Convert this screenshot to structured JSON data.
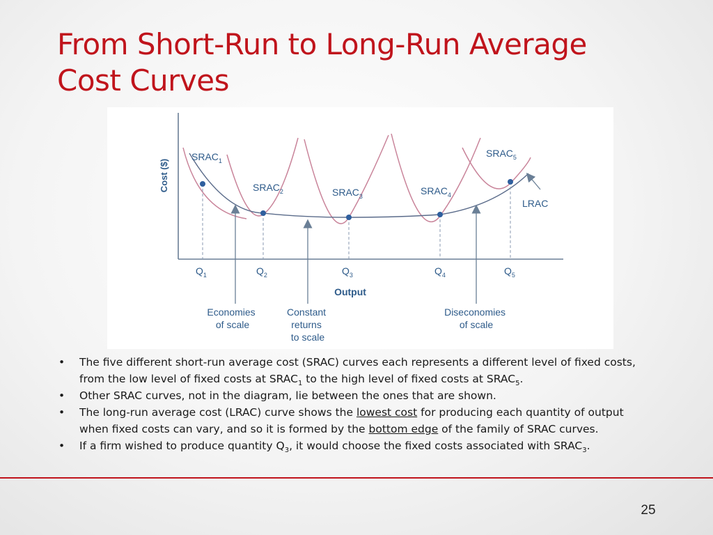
{
  "slide": {
    "title_line1": "From Short-Run to Long-Run Average",
    "title_line2": "Cost Curves",
    "page_number": "25",
    "accent_color": "#c0141c"
  },
  "diagram": {
    "y_axis_label": "Cost ($)",
    "x_axis_label": "Output",
    "srac_labels": [
      {
        "base": "SRAC",
        "sub": "1"
      },
      {
        "base": "SRAC",
        "sub": "2"
      },
      {
        "base": "SRAC",
        "sub": "3"
      },
      {
        "base": "SRAC",
        "sub": "4"
      },
      {
        "base": "SRAC",
        "sub": "5"
      }
    ],
    "lrac_label": "LRAC",
    "q_labels": [
      {
        "base": "Q",
        "sub": "1"
      },
      {
        "base": "Q",
        "sub": "2"
      },
      {
        "base": "Q",
        "sub": "3"
      },
      {
        "base": "Q",
        "sub": "4"
      },
      {
        "base": "Q",
        "sub": "5"
      }
    ],
    "annotations": {
      "economies": [
        "Economies",
        "of scale"
      ],
      "constant": [
        "Constant",
        "returns",
        "to scale"
      ],
      "diseconomies": [
        "Diseconomies",
        "of scale"
      ]
    },
    "colors": {
      "axis": "#6a7f96",
      "srac": "#c9849a",
      "lrac": "#5a6b8a",
      "dot": "#2f5f9e",
      "text": "#2e5b8a"
    }
  },
  "bullets": {
    "b1_a": "The five different short-run average cost (SRAC) curves each represents a different level of fixed costs,",
    "b1_b": "from the low level of fixed costs at SRAC",
    "b1_sub1": "1",
    "b1_c": " to the high level of fixed costs at SRAC",
    "b1_sub2": "5",
    "b1_d": ".",
    "b2": "Other SRAC curves, not in the diagram, lie between the ones that are shown.",
    "b3_a": "The long-run average cost (LRAC) curve shows the ",
    "b3_u1": "lowest cost",
    "b3_b": " for producing each quantity of output",
    "b3_c": "when fixed costs can vary, and so it is formed by the ",
    "b3_u2": "bottom edge",
    "b3_d": " of the family of SRAC curves.",
    "b4_a": "If a firm wished to produce quantity Q",
    "b4_sub1": "3",
    "b4_b": ", it would choose the fixed costs associated with SRAC",
    "b4_sub2": "3",
    "b4_c": "."
  }
}
